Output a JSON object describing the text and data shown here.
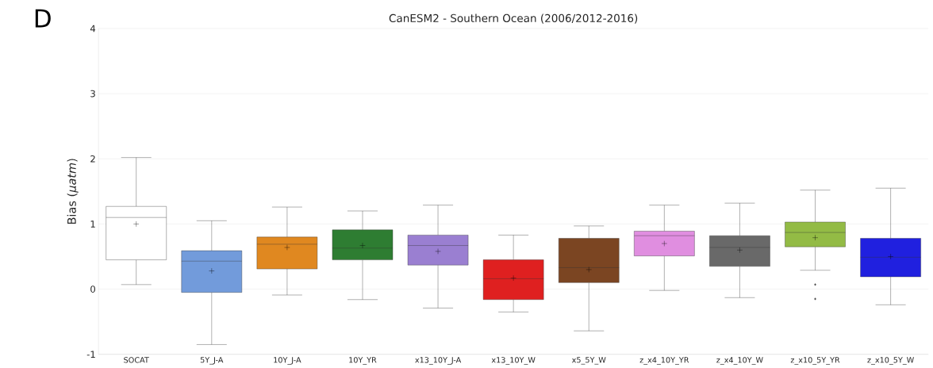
{
  "chart_data": {
    "type": "box",
    "title": "CanESM2 - Southern Ocean (2006/2012-2016)",
    "ylabel": "Bias (*µatm*)",
    "annotations": [
      "D"
    ],
    "categories": [
      "SOCAT",
      "5Y_J-A",
      "10Y_J-A",
      "10Y_YR",
      "x13_10Y_J-A",
      "x13_10Y_W",
      "x5_5Y_W",
      "z_x4_10Y_YR",
      "z_x4_10Y_W",
      "z_x10_5Y_YR",
      "z_x10_5Y_W"
    ],
    "colors": [
      "#ffffff",
      "#729bdb",
      "#e08820",
      "#2e7d32",
      "#9a7fd1",
      "#df2020",
      "#7b4522",
      "#e08ee0",
      "#696969",
      "#93bb45",
      "#2020df"
    ],
    "boxes": [
      {
        "low": 0.07,
        "q1": 0.45,
        "median": 1.1,
        "q3": 1.27,
        "high": 2.02,
        "mean": 1.0
      },
      {
        "low": -0.85,
        "q1": -0.05,
        "median": 0.43,
        "q3": 0.59,
        "high": 1.05,
        "mean": 0.28
      },
      {
        "low": -0.09,
        "q1": 0.31,
        "median": 0.69,
        "q3": 0.8,
        "high": 1.26,
        "mean": 0.64
      },
      {
        "low": -0.16,
        "q1": 0.45,
        "median": 0.63,
        "q3": 0.91,
        "high": 1.2,
        "mean": 0.67
      },
      {
        "low": -0.29,
        "q1": 0.37,
        "median": 0.67,
        "q3": 0.83,
        "high": 1.29,
        "mean": 0.58
      },
      {
        "low": -0.35,
        "q1": -0.16,
        "median": 0.16,
        "q3": 0.45,
        "high": 0.83,
        "mean": 0.17
      },
      {
        "low": -0.64,
        "q1": 0.1,
        "median": 0.33,
        "q3": 0.78,
        "high": 0.97,
        "mean": 0.3
      },
      {
        "low": -0.02,
        "q1": 0.51,
        "median": 0.82,
        "q3": 0.89,
        "high": 1.29,
        "mean": 0.7
      },
      {
        "low": -0.13,
        "q1": 0.35,
        "median": 0.64,
        "q3": 0.82,
        "high": 1.32,
        "mean": 0.6
      },
      {
        "low": 0.29,
        "q1": 0.65,
        "median": 0.87,
        "q3": 1.03,
        "high": 1.52,
        "mean": 0.79,
        "outliers": [
          0.07,
          -0.15
        ]
      },
      {
        "low": -0.24,
        "q1": 0.19,
        "median": 0.49,
        "q3": 0.78,
        "high": 1.55,
        "mean": 0.5
      }
    ],
    "ylim": [
      -1,
      4
    ],
    "yticks": [
      -1,
      0,
      1,
      2,
      3,
      4
    ],
    "grid": "y"
  }
}
